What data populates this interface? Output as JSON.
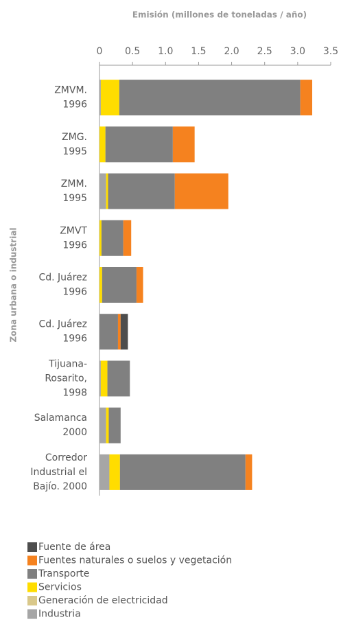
{
  "chart_data": {
    "type": "stacked_barh",
    "xlabel": "Emisión (millones de toneladas / año)",
    "ylabel": "Zona urbana o industrial",
    "categories": [
      [
        "ZMVM.",
        "1996"
      ],
      [
        "ZMG.",
        "1995"
      ],
      [
        "ZMM.",
        "1995"
      ],
      [
        "ZMVT",
        "1996"
      ],
      [
        "Cd. Juárez",
        "1996"
      ],
      [
        "Cd. Juárez",
        "1996"
      ],
      [
        "Tijuana-",
        "Rosarito,",
        "1998"
      ],
      [
        "Salamanca",
        "2000"
      ],
      [
        "Corredor",
        "Industrial el",
        "Bajío. 2000"
      ]
    ],
    "series": [
      {
        "name": "Industria",
        "color": "#a6a6a6",
        "values": [
          0.02,
          0.0,
          0.1,
          0.0,
          0.0,
          0.0,
          0.02,
          0.1,
          0.15
        ]
      },
      {
        "name": "Generación de electricidad",
        "color": "#d9c88a",
        "values": [
          0,
          0,
          0,
          0,
          0,
          0,
          0,
          0,
          0
        ]
      },
      {
        "name": "Servicios",
        "color": "#ffdd00",
        "values": [
          0.28,
          0.09,
          0.03,
          0.03,
          0.04,
          0.0,
          0.1,
          0.04,
          0.16
        ]
      },
      {
        "name": "Transporte",
        "color": "#808080",
        "values": [
          2.74,
          1.02,
          1.01,
          0.33,
          0.52,
          0.28,
          0.34,
          0.18,
          1.9
        ]
      },
      {
        "name": "Fuentes naturales o suelos y vegetación",
        "color": "#f5821f",
        "values": [
          0.18,
          0.33,
          0.81,
          0.12,
          0.1,
          0.04,
          0.0,
          0.0,
          0.1
        ]
      },
      {
        "name": "Fuente de área",
        "color": "#4d4d4d",
        "values": [
          0,
          0,
          0,
          0,
          0,
          0.11,
          0,
          0,
          0
        ]
      }
    ],
    "xlim": [
      0,
      3.5
    ],
    "xticks": [
      0,
      0.5,
      {
        "value": 1,
        "label": "1.0"
      },
      1.5,
      {
        "value": 2,
        "label": "2.0"
      },
      2.5,
      {
        "value": 3,
        "label": "3.0"
      },
      3.5
    ]
  }
}
